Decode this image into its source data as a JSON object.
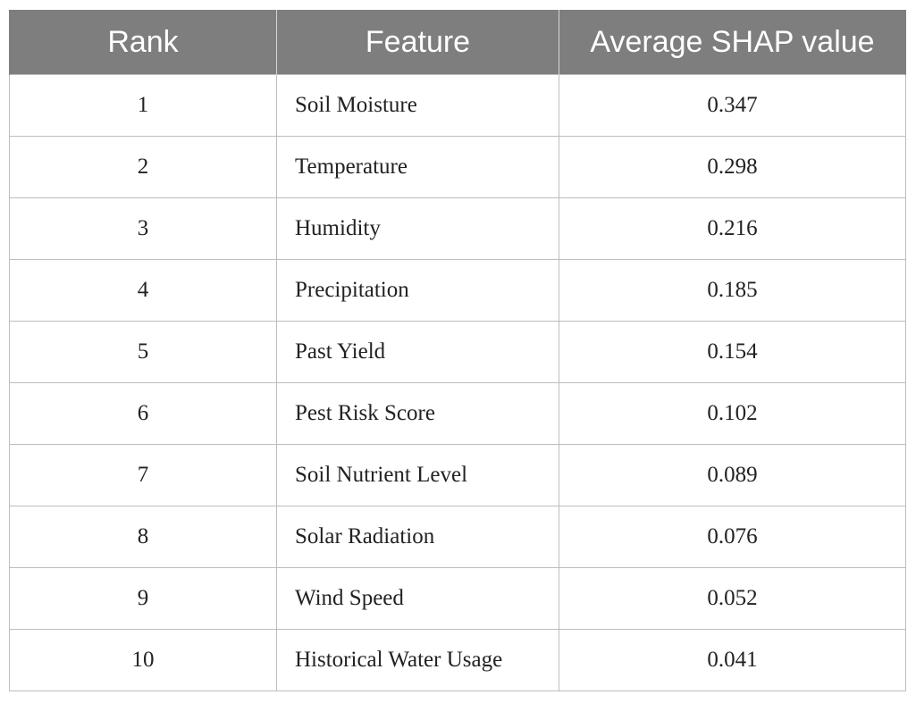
{
  "table": {
    "headers": [
      "Rank",
      "Feature",
      "Average SHAP value"
    ],
    "rows": [
      {
        "rank": "1",
        "feature": "Soil Moisture",
        "value": "0.347"
      },
      {
        "rank": "2",
        "feature": "Temperature",
        "value": "0.298"
      },
      {
        "rank": "3",
        "feature": "Humidity",
        "value": "0.216"
      },
      {
        "rank": "4",
        "feature": "Precipitation",
        "value": "0.185"
      },
      {
        "rank": "5",
        "feature": "Past Yield",
        "value": "0.154"
      },
      {
        "rank": "6",
        "feature": "Pest Risk Score",
        "value": "0.102"
      },
      {
        "rank": "7",
        "feature": "Soil Nutrient Level",
        "value": "0.089"
      },
      {
        "rank": "8",
        "feature": "Solar Radiation",
        "value": "0.076"
      },
      {
        "rank": "9",
        "feature": "Wind Speed",
        "value": "0.052"
      },
      {
        "rank": "10",
        "feature": "Historical Water Usage",
        "value": "0.041"
      }
    ]
  },
  "colors": {
    "header_background": "#7e7e7e",
    "header_text": "#ffffff",
    "border": "#bdbdbd"
  }
}
